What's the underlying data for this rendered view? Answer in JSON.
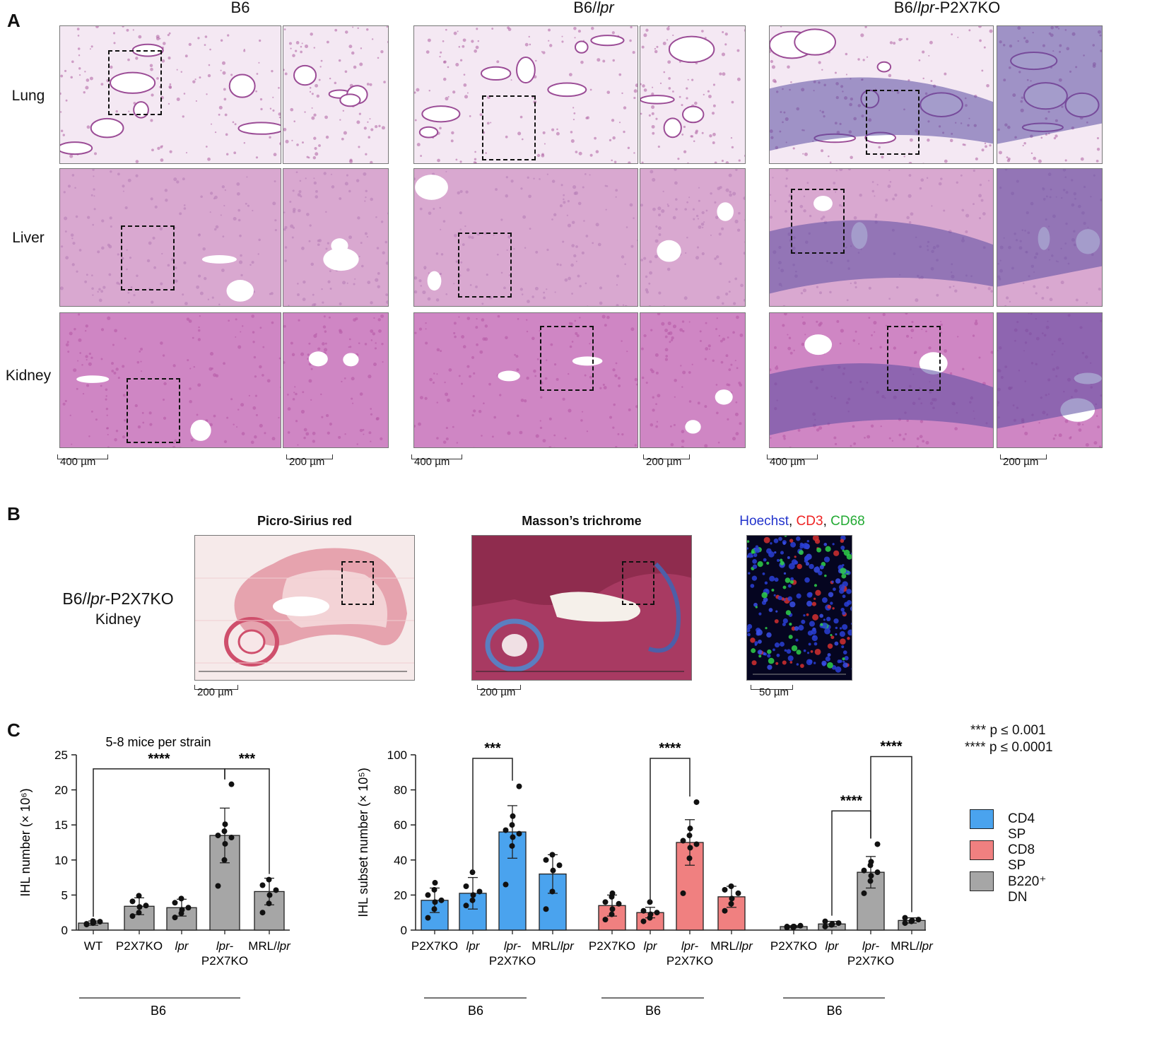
{
  "panelA": {
    "letter": "A",
    "columns": [
      {
        "title": "B6",
        "title_parts": [
          "B6"
        ]
      },
      {
        "title": "B6/lpr",
        "title_parts": [
          "B6/",
          "lpr",
          ""
        ]
      },
      {
        "title": "B6/lpr-P2X7KO",
        "title_parts": [
          "B6/",
          "lpr",
          "-P2X7KO"
        ]
      }
    ],
    "rows": [
      "Lung",
      "Liver",
      "Kidney"
    ],
    "scale_low": "400 µm",
    "scale_high": "200 µm",
    "colors": {
      "lung_bg": "#f4e8f3",
      "liver_bg": "#d9a8d0",
      "kidney_bg": "#cf86c4",
      "infiltrate": "#5a4aa0"
    }
  },
  "panelB": {
    "letter": "B",
    "sample_label_parts": [
      "B6/",
      "lpr",
      "-P2X7KO"
    ],
    "sample_tissue": "Kidney",
    "stains": {
      "sirius": "Picro-Sirius red",
      "masson": "Masson’s trichrome"
    },
    "fluor_labels": [
      {
        "text": "Hoechst",
        "color": "#2233cc"
      },
      {
        "text": ", ",
        "color": "#111111"
      },
      {
        "text": "CD3",
        "color": "#ee2222"
      },
      {
        "text": ", ",
        "color": "#111111"
      },
      {
        "text": "CD68",
        "color": "#22aa33"
      }
    ],
    "scale_sirius": "200 µm",
    "scale_masson": "200 µm",
    "scale_fluor": "50 µm"
  },
  "panelC": {
    "letter": "C",
    "significance_key": [
      "*** p ≤ 0.001",
      "**** p ≤ 0.0001"
    ],
    "legend": [
      {
        "label": "CD4 SP",
        "color": "#4aa3ee"
      },
      {
        "label": "CD8 SP",
        "color": "#f08080"
      },
      {
        "label": "B220⁺ DN",
        "color": "#a6a6a6"
      }
    ]
  },
  "chart_data": [
    {
      "type": "bar",
      "title": "5-8 mice per strain",
      "ylabel": "IHL number (× 10⁶)",
      "ylim": [
        0,
        25
      ],
      "yticks": [
        0,
        5,
        10,
        15,
        20,
        25
      ],
      "group_label": "B6",
      "categories": [
        "WT",
        "P2X7KO",
        "lpr",
        "lpr-P2X7KO",
        "MRL/lpr"
      ],
      "category_labels": [
        [
          "WT"
        ],
        [
          "P2X7KO"
        ],
        [
          "lpr"
        ],
        [
          "lpr-",
          "P2X7KO"
        ],
        [
          "MRL/",
          "lpr"
        ]
      ],
      "bar_color": "#a6a6a6",
      "values": [
        1.0,
        3.4,
        3.2,
        13.5,
        5.5
      ],
      "errors": [
        0.3,
        1.2,
        1.2,
        3.9,
        1.9
      ],
      "points": [
        [
          0.8,
          1.0,
          1.1,
          1.2,
          0.9,
          1.3
        ],
        [
          2.0,
          2.5,
          3.3,
          3.5,
          4.1,
          4.9
        ],
        [
          1.8,
          2.4,
          2.9,
          3.2,
          3.9,
          4.5
        ],
        [
          6.3,
          10.0,
          12.3,
          13.2,
          13.5,
          14.1,
          15.1,
          20.8
        ],
        [
          2.5,
          3.8,
          5.0,
          5.7,
          6.4,
          7.2
        ]
      ],
      "significance": [
        {
          "from": 0,
          "to": 3,
          "label": "****"
        },
        {
          "from": 3,
          "to": 4,
          "label": "***"
        }
      ]
    },
    {
      "type": "bar",
      "ylabel": "IHL subset number (× 10⁵)",
      "ylim": [
        0,
        100
      ],
      "yticks": [
        0,
        20,
        40,
        60,
        80,
        100
      ],
      "groups": [
        {
          "series": "CD4 SP",
          "color": "#4aa3ee",
          "group_label": "B6",
          "categories": [
            "P2X7KO",
            "lpr",
            "lpr-P2X7KO",
            "MRL/lpr"
          ],
          "category_labels": [
            [
              "P2X7KO"
            ],
            [
              "lpr"
            ],
            [
              "lpr-",
              "P2X7KO"
            ],
            [
              "MRL/",
              "lpr"
            ]
          ],
          "values": [
            17,
            21,
            56,
            32
          ],
          "errors": [
            7,
            9,
            15,
            11
          ],
          "points": [
            [
              7,
              12,
              16,
              17,
              20,
              23,
              27
            ],
            [
              14,
              17,
              20,
              22,
              25,
              33
            ],
            [
              26,
              48,
              53,
              55,
              57,
              60,
              65,
              82
            ],
            [
              12,
              22,
              34,
              37,
              40,
              43
            ]
          ],
          "significance": [
            {
              "from": 1,
              "to": 2,
              "label": "***"
            }
          ]
        },
        {
          "series": "CD8 SP",
          "color": "#f08080",
          "group_label": "B6",
          "categories": [
            "P2X7KO",
            "lpr",
            "lpr-P2X7KO",
            "MRL/lpr"
          ],
          "category_labels": [
            [
              "P2X7KO"
            ],
            [
              "lpr"
            ],
            [
              "lpr-",
              "P2X7KO"
            ],
            [
              "MRL/",
              "lpr"
            ]
          ],
          "values": [
            14,
            10,
            50,
            19
          ],
          "errors": [
            6,
            3,
            13,
            6
          ],
          "points": [
            [
              6,
              9,
              12,
              15,
              16,
              19,
              21
            ],
            [
              5,
              7,
              9,
              10,
              11,
              16
            ],
            [
              21,
              41,
              47,
              49,
              51,
              54,
              58,
              73
            ],
            [
              11,
              15,
              18,
              21,
              23,
              25
            ]
          ],
          "significance": [
            {
              "from": 1,
              "to": 2,
              "label": "****"
            }
          ]
        },
        {
          "series": "B220⁺ DN",
          "color": "#a6a6a6",
          "group_label": "B6",
          "categories": [
            "P2X7KO",
            "lpr",
            "lpr-P2X7KO",
            "MRL/lpr"
          ],
          "category_labels": [
            [
              "P2X7KO"
            ],
            [
              "lpr"
            ],
            [
              "lpr-",
              "P2X7KO"
            ],
            [
              "MRL/",
              "lpr"
            ]
          ],
          "values": [
            2,
            3.5,
            33,
            5.5
          ],
          "errors": [
            0.5,
            1.5,
            9,
            1.5
          ],
          "points": [
            [
              1.5,
              2,
              2,
              2.5,
              2,
              1.5
            ],
            [
              2,
              3,
              3.5,
              4,
              5,
              3
            ],
            [
              21,
              28,
              31,
              33,
              34,
              37,
              39,
              49
            ],
            [
              4,
              5,
              5.5,
              6,
              7,
              5
            ]
          ],
          "significance": [
            {
              "from": 1,
              "to": 2,
              "label": "****",
              "level": 1
            },
            {
              "from": 2,
              "to": 3,
              "label": "****",
              "level": 2
            }
          ]
        }
      ]
    }
  ]
}
